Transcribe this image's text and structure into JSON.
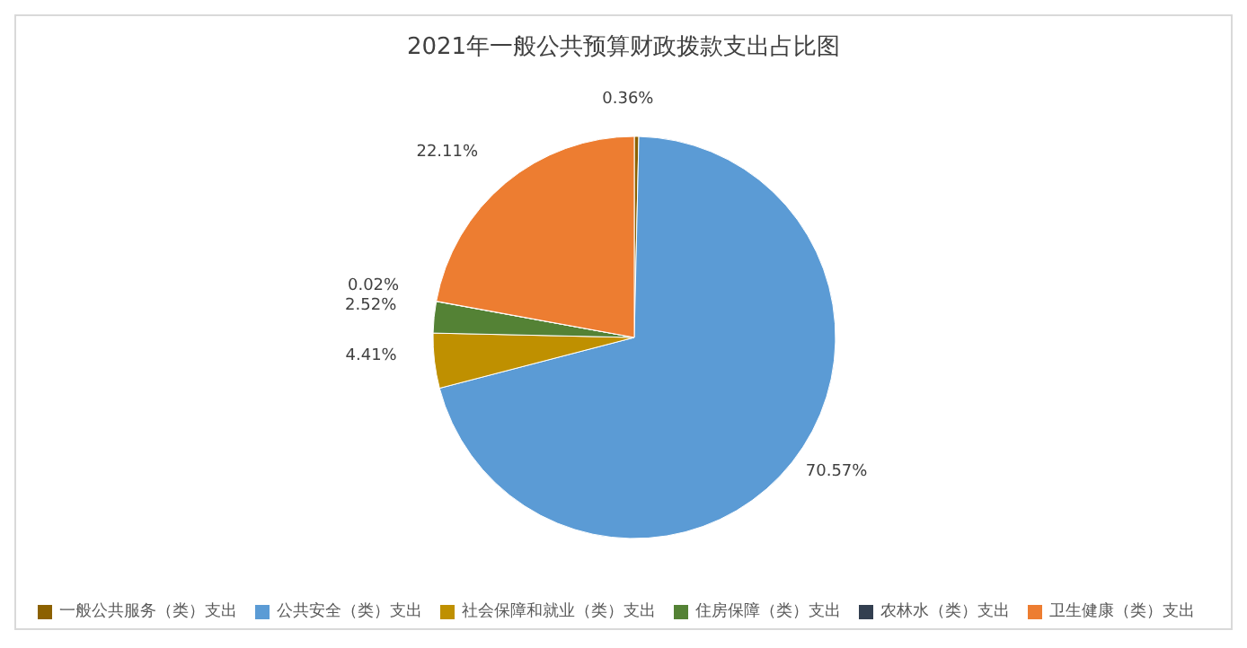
{
  "chart_data": {
    "type": "pie",
    "title": "2021年一般公共预算财政拨款支出占比图",
    "categories": [
      "一般公共服务（类）支出",
      "公共安全（类）支出",
      "社会保障和就业（类）支出",
      "住房保障（类）支出",
      "农林水（类）支出",
      "卫生健康（类）支出"
    ],
    "values": [
      0.36,
      70.57,
      4.41,
      2.52,
      0.02,
      22.11
    ],
    "value_labels": [
      "0.36%",
      "70.57%",
      "4.41%",
      "2.52%",
      "0.02%",
      "22.11%"
    ],
    "colors": [
      "#8c6100",
      "#5b9bd5",
      "#bf9000",
      "#548235",
      "#333f50",
      "#ed7d31"
    ],
    "legend": "bottom"
  }
}
